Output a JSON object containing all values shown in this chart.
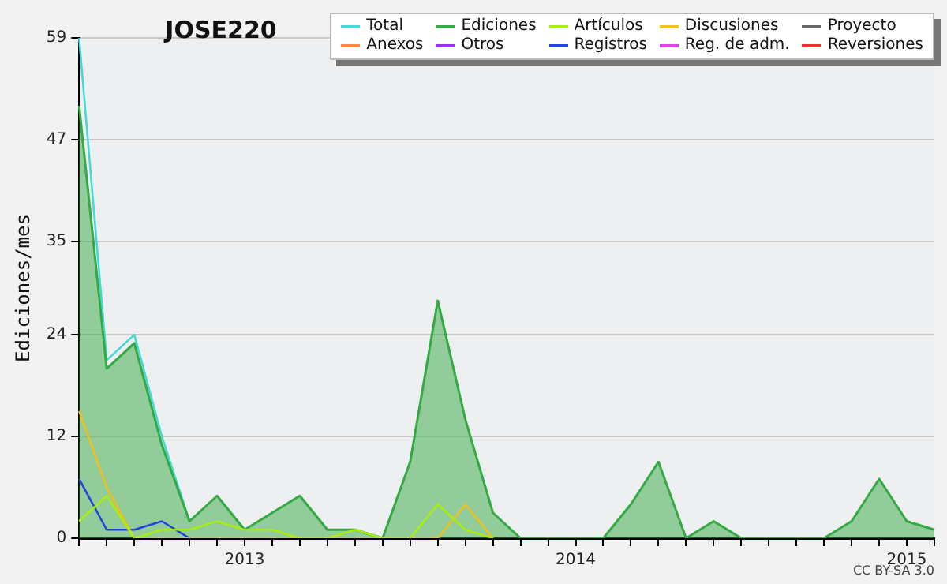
{
  "chart_data": {
    "type": "line",
    "title": "JOSE220",
    "ylabel": "Ediciones/mes",
    "categories": [
      null,
      null,
      null,
      null,
      null,
      null,
      "2013",
      null,
      null,
      null,
      null,
      null,
      null,
      null,
      null,
      null,
      null,
      null,
      "2014",
      null,
      null,
      null,
      null,
      null,
      null,
      null,
      null,
      null,
      null,
      null,
      "2015",
      null
    ],
    "series": [
      {
        "name": "Total",
        "color": "#44d8d8",
        "values": [
          59,
          21,
          24,
          12,
          2,
          null,
          null,
          null,
          null,
          null,
          null,
          null,
          null,
          null,
          null,
          null,
          null,
          null,
          null,
          null,
          null,
          null,
          null,
          null,
          null,
          null,
          null,
          null,
          null,
          null,
          null,
          null
        ]
      },
      {
        "name": "Ediciones",
        "type": "area",
        "color": "#33aa44",
        "values": [
          51,
          20,
          23,
          11,
          2,
          5,
          1,
          3,
          5,
          1,
          1,
          0,
          9,
          28,
          14,
          3,
          0,
          0,
          0,
          0,
          4,
          9,
          0,
          2,
          0,
          0,
          0,
          0,
          2,
          7,
          2,
          1
        ]
      },
      {
        "name": "Artículos",
        "color": "#aaee11",
        "values": [
          2,
          5,
          0,
          1,
          1,
          2,
          1,
          1,
          0,
          0,
          1,
          0,
          0,
          4,
          1,
          0,
          null,
          null,
          null,
          null,
          null,
          null,
          null,
          null,
          null,
          null,
          null,
          null,
          null,
          null,
          null,
          null
        ]
      },
      {
        "name": "Discusiones",
        "color": "#eec022",
        "values": [
          15,
          6,
          0,
          0,
          0,
          0,
          0,
          0,
          0,
          0,
          0,
          0,
          0,
          0,
          4,
          0,
          null,
          null,
          null,
          null,
          null,
          null,
          null,
          null,
          null,
          null,
          null,
          null,
          null,
          null,
          null,
          null
        ]
      },
      {
        "name": "Proyecto",
        "color": "#666666",
        "values": [
          null,
          null,
          null,
          null,
          null,
          null,
          null,
          null,
          null,
          null,
          null,
          null,
          null,
          null,
          null,
          null,
          null,
          null,
          null,
          null,
          null,
          null,
          null,
          null,
          null,
          null,
          null,
          null,
          null,
          null,
          null,
          null
        ]
      },
      {
        "name": "Anexos",
        "color": "#ff8844",
        "values": [
          null,
          null,
          null,
          null,
          null,
          null,
          null,
          null,
          null,
          null,
          null,
          null,
          null,
          null,
          null,
          null,
          null,
          null,
          null,
          null,
          null,
          null,
          null,
          null,
          null,
          null,
          null,
          null,
          null,
          null,
          null,
          null
        ]
      },
      {
        "name": "Otros",
        "color": "#9933ee",
        "values": [
          null,
          null,
          null,
          null,
          null,
          null,
          null,
          null,
          null,
          null,
          null,
          null,
          null,
          null,
          null,
          null,
          null,
          null,
          null,
          null,
          null,
          null,
          null,
          null,
          null,
          null,
          null,
          null,
          null,
          null,
          null,
          null
        ]
      },
      {
        "name": "Registros",
        "color": "#2244dd",
        "values": [
          7,
          1,
          1,
          2,
          0,
          null,
          null,
          null,
          null,
          null,
          null,
          null,
          null,
          null,
          null,
          null,
          null,
          null,
          null,
          null,
          null,
          null,
          null,
          null,
          null,
          null,
          null,
          null,
          null,
          null,
          null,
          null
        ]
      },
      {
        "name": "Reg. de adm.",
        "color": "#dd44ee",
        "values": [
          null,
          null,
          null,
          null,
          null,
          null,
          null,
          null,
          null,
          null,
          null,
          null,
          null,
          null,
          null,
          null,
          null,
          null,
          null,
          null,
          null,
          null,
          null,
          null,
          null,
          null,
          null,
          null,
          null,
          null,
          null,
          null
        ]
      },
      {
        "name": "Reversiones",
        "color": "#ee3333",
        "values": [
          null,
          null,
          null,
          null,
          null,
          null,
          null,
          null,
          null,
          null,
          null,
          null,
          null,
          null,
          null,
          null,
          null,
          null,
          null,
          null,
          null,
          null,
          null,
          null,
          null,
          null,
          null,
          null,
          null,
          null,
          null,
          null
        ]
      }
    ],
    "ylim": [
      0,
      59
    ],
    "yticks": [
      0,
      12,
      24,
      35,
      47,
      59
    ],
    "grid": "y",
    "legend": "top right",
    "marker": "none",
    "line_style": "solid",
    "annotations": [
      "CC BY-SA 3.0"
    ]
  }
}
